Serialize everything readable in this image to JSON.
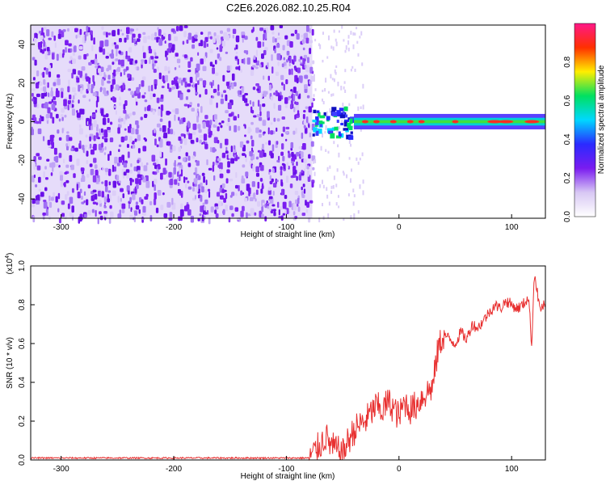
{
  "title": "C2E6.2026.082.10.25.R04",
  "chart_data": [
    {
      "type": "heatmap",
      "xlabel": "Height of straight line (km)",
      "ylabel": "Frequency (Hz)",
      "xlim": [
        -327,
        130
      ],
      "ylim": [
        -50,
        50
      ],
      "x_ticks": [
        -300,
        -200,
        -100,
        0,
        100
      ],
      "y_ticks": [
        -40,
        -20,
        0,
        20,
        40
      ],
      "x_tick_labels": [
        "-300",
        "-200",
        "-100",
        "0",
        "100"
      ],
      "y_tick_labels": [
        "-40",
        "-20",
        "0",
        "20",
        "40"
      ],
      "noise_region_x": [
        -327,
        -77
      ],
      "signal_band_hz": 0,
      "colorbar": {
        "label": "Normalized spectral amplitude",
        "range": [
          0.0,
          1.0
        ],
        "ticks": [
          0.0,
          0.2,
          0.4,
          0.6,
          0.8
        ],
        "tick_labels": [
          "0.0",
          "0.2",
          "0.4",
          "0.6",
          "0.8"
        ],
        "colors": [
          "#ffffff",
          "#d8c8f4",
          "#7a1cf0",
          "#2a2aff",
          "#00d8ff",
          "#00e060",
          "#ffee00",
          "#ff3000",
          "#ff1888"
        ]
      }
    },
    {
      "type": "line",
      "xlabel": "Height of straight line (km)",
      "ylabel": "SNR (10 * v/v)",
      "y_multiplier": "(x10",
      "y_multiplier_exp": "4",
      "y_multiplier_close": ")",
      "xlim": [
        -327,
        130
      ],
      "ylim": [
        0,
        1.0
      ],
      "x_ticks": [
        -300,
        -200,
        -100,
        0,
        100
      ],
      "y_ticks": [
        0,
        0.2,
        0.4,
        0.6,
        0.8,
        1.0
      ],
      "x_tick_labels": [
        "-300",
        "-200",
        "-100",
        "0",
        "100"
      ],
      "y_tick_labels": [
        "0.0",
        "0.2",
        "0.4",
        "0.6",
        "0.8",
        "1.0"
      ],
      "line_color": "#e83030",
      "series": [
        {
          "name": "SNR",
          "x": [
            -327,
            -300,
            -250,
            -200,
            -150,
            -100,
            -80,
            -75,
            -70,
            -65,
            -60,
            -55,
            -50,
            -45,
            -40,
            -35,
            -30,
            -25,
            -20,
            -15,
            -10,
            -5,
            0,
            5,
            10,
            15,
            20,
            25,
            30,
            35,
            40,
            45,
            50,
            55,
            60,
            65,
            70,
            75,
            80,
            85,
            90,
            95,
            100,
            105,
            110,
            115,
            118,
            120,
            125,
            130
          ],
          "y": [
            0.01,
            0.01,
            0.01,
            0.01,
            0.01,
            0.01,
            0.01,
            0.04,
            0.08,
            0.12,
            0.07,
            0.05,
            0.03,
            0.1,
            0.15,
            0.18,
            0.2,
            0.24,
            0.28,
            0.25,
            0.3,
            0.27,
            0.22,
            0.3,
            0.26,
            0.28,
            0.32,
            0.35,
            0.38,
            0.58,
            0.65,
            0.62,
            0.6,
            0.66,
            0.62,
            0.7,
            0.68,
            0.72,
            0.76,
            0.8,
            0.78,
            0.82,
            0.8,
            0.78,
            0.8,
            0.84,
            0.58,
            0.97,
            0.78,
            0.8
          ]
        }
      ]
    }
  ]
}
